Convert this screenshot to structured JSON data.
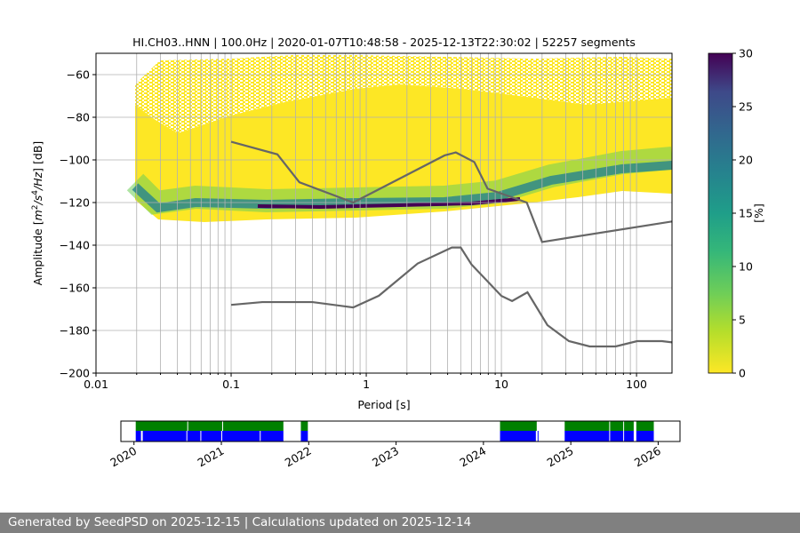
{
  "chart_data": {
    "type": "heatmap",
    "title": "HI.CH03..HNN | 100.0Hz | 2020-01-07T10:48:58 - 2025-12-13T22:30:02 | 52257 segments",
    "xlabel": "Period [s]",
    "ylabel_parts": [
      "Amplitude [",
      "m",
      "2",
      "/",
      "s",
      "4",
      "/",
      "Hz",
      "] [dB]"
    ],
    "xscale": "log",
    "xlim": [
      0.01,
      183
    ],
    "ylim": [
      -200,
      -50
    ],
    "xticks": [
      {
        "v": 0.01,
        "label": "0.01"
      },
      {
        "v": 0.1,
        "label": "0.1"
      },
      {
        "v": 1,
        "label": "1"
      },
      {
        "v": 10,
        "label": "10"
      },
      {
        "v": 100,
        "label": "100"
      }
    ],
    "yticks": [
      {
        "v": -200,
        "label": "−200"
      },
      {
        "v": -180,
        "label": "−180"
      },
      {
        "v": -160,
        "label": "−160"
      },
      {
        "v": -140,
        "label": "−140"
      },
      {
        "v": -120,
        "label": "−120"
      },
      {
        "v": -100,
        "label": "−100"
      },
      {
        "v": -80,
        "label": "−80"
      },
      {
        "v": -60,
        "label": "−60"
      }
    ],
    "grid": true,
    "colormap": "viridis_r",
    "colorbar": {
      "label": "[%]",
      "range": [
        0,
        30
      ],
      "ticks": [
        "0",
        "5",
        "10",
        "15",
        "20",
        "25",
        "30"
      ]
    },
    "noise_models": {
      "color": "#666666",
      "nhnm": [
        [
          0.1,
          -91.5
        ],
        [
          0.22,
          -97.4
        ],
        [
          0.32,
          -110.5
        ],
        [
          0.8,
          -120
        ],
        [
          3.8,
          -97.9
        ],
        [
          4.6,
          -96.5
        ],
        [
          6.3,
          -101
        ],
        [
          7.9,
          -113.5
        ],
        [
          15.4,
          -120
        ],
        [
          20,
          -138.5
        ],
        [
          354.8,
          -126
        ]
      ],
      "nlnm": [
        [
          0.1,
          -168
        ],
        [
          0.17,
          -166.7
        ],
        [
          0.4,
          -166.7
        ],
        [
          0.8,
          -169.2
        ],
        [
          1.24,
          -163.7
        ],
        [
          2.4,
          -148.6
        ],
        [
          4.3,
          -141.1
        ],
        [
          5,
          -141.1
        ],
        [
          6,
          -149
        ],
        [
          10,
          -163.8
        ],
        [
          12,
          -166.2
        ],
        [
          15.6,
          -162.1
        ],
        [
          21.9,
          -177.5
        ],
        [
          31.6,
          -185
        ],
        [
          45,
          -187.5
        ],
        [
          70,
          -187.5
        ],
        [
          101,
          -185
        ],
        [
          154,
          -185
        ],
        [
          328,
          -187.5
        ]
      ]
    },
    "data_distribution": {
      "periods_s": [
        0.019,
        183
      ],
      "mode_db_range": [
        -123,
        -100
      ],
      "mode_color": "#440154",
      "low_color": "#fde725"
    }
  },
  "timeline": {
    "xlim": [
      2019.85,
      2026.25
    ],
    "ticks": [
      "2020",
      "2021",
      "2022",
      "2023",
      "2024",
      "2025",
      "2026"
    ],
    "processed_color": "#008000",
    "available_color": "#0000ff",
    "processed_spans": [
      [
        2020.02,
        2020.61
      ],
      [
        2020.62,
        2021.01
      ],
      [
        2021.02,
        2021.71
      ],
      [
        2021.91,
        2021.99
      ],
      [
        2024.19,
        2024.61
      ],
      [
        2024.93,
        2025.44
      ],
      [
        2025.45,
        2025.6
      ],
      [
        2025.61,
        2025.72
      ],
      [
        2025.75,
        2025.95
      ]
    ],
    "available_spans": [
      [
        2020.02,
        2020.08
      ],
      [
        2020.1,
        2020.6
      ],
      [
        2020.61,
        2020.76
      ],
      [
        2020.77,
        2021.0
      ],
      [
        2021.01,
        2021.44
      ],
      [
        2021.45,
        2021.71
      ],
      [
        2021.91,
        2021.99
      ],
      [
        2024.19,
        2024.6
      ],
      [
        2024.62,
        2024.62
      ],
      [
        2024.93,
        2025.44
      ],
      [
        2025.45,
        2025.6
      ],
      [
        2025.61,
        2025.72
      ],
      [
        2025.75,
        2025.95
      ]
    ]
  },
  "footer": {
    "text": "Generated by SeedPSD on 2025-12-15 | Calculations updated on 2025-12-14"
  }
}
